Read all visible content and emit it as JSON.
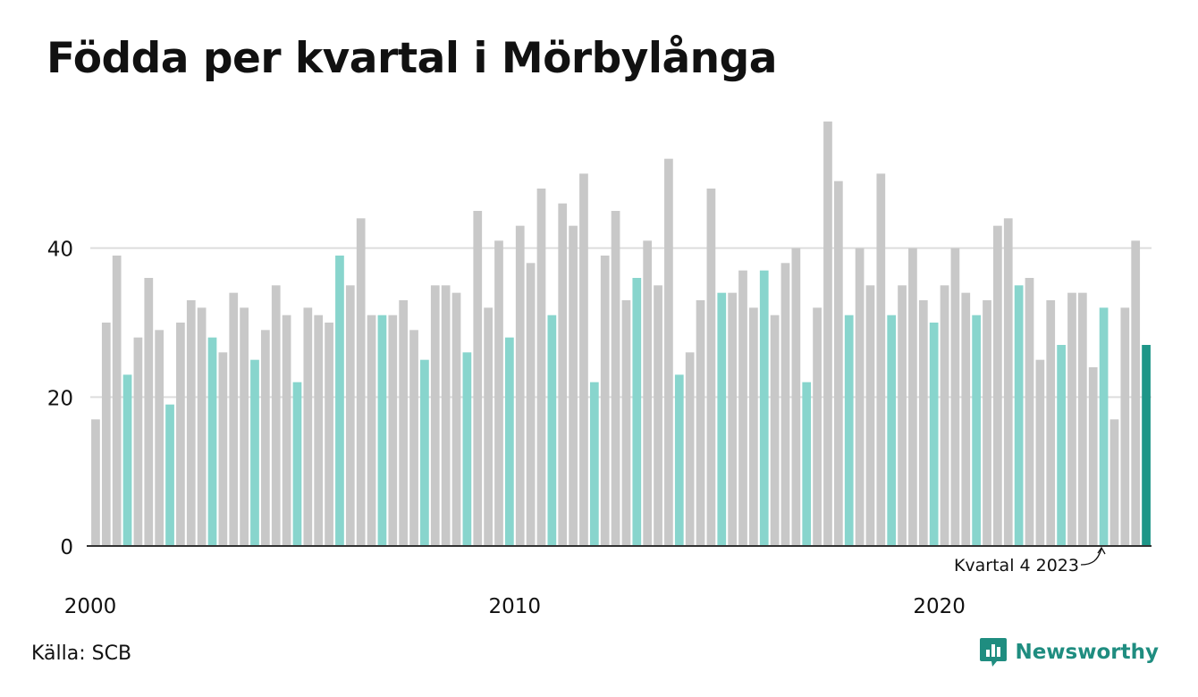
{
  "title": "Födda per kvartal i Mörbylånga",
  "source": "Källa: SCB",
  "brand": {
    "name": "Newsworthy",
    "icon": "newsworthy-logo-icon",
    "color": "#1f8d80"
  },
  "colors": {
    "other": "#c8c8c8",
    "q4": "#88d5cd",
    "latest": "#1e9688",
    "grid": "#dddddd",
    "axis": "#333333"
  },
  "chart_data": {
    "type": "bar",
    "title": "Födda per kvartal i Mörbylånga",
    "x_tick_labels": [
      "2000",
      "2010",
      "2020"
    ],
    "y_ticks": [
      0,
      20,
      40
    ],
    "ylim": [
      0,
      57
    ],
    "grid": true,
    "annotation": "Kvartal 4 2023",
    "series": [
      {
        "quarters_start": "2000 Q1",
        "values": [
          17,
          30,
          39,
          23,
          28,
          36,
          29,
          19,
          30,
          33,
          32,
          28,
          26,
          34,
          32,
          25,
          29,
          35,
          31,
          22,
          32,
          31,
          30,
          39,
          35,
          44,
          31,
          31,
          31,
          33,
          29,
          25,
          35,
          35,
          34,
          26,
          45,
          32,
          41,
          28,
          43,
          38,
          48,
          31,
          46,
          43,
          50,
          22,
          39,
          45,
          33,
          36,
          41,
          35,
          52,
          23,
          26,
          33,
          48,
          34,
          34,
          37,
          32,
          37,
          31,
          38,
          40,
          22,
          32,
          57,
          49,
          31,
          40,
          35,
          50,
          31,
          35,
          40,
          33,
          30,
          35,
          40,
          34,
          31,
          33,
          43,
          44,
          35,
          36,
          25,
          33,
          27,
          34,
          34,
          24,
          32,
          17,
          32,
          41,
          27
        ]
      }
    ]
  }
}
